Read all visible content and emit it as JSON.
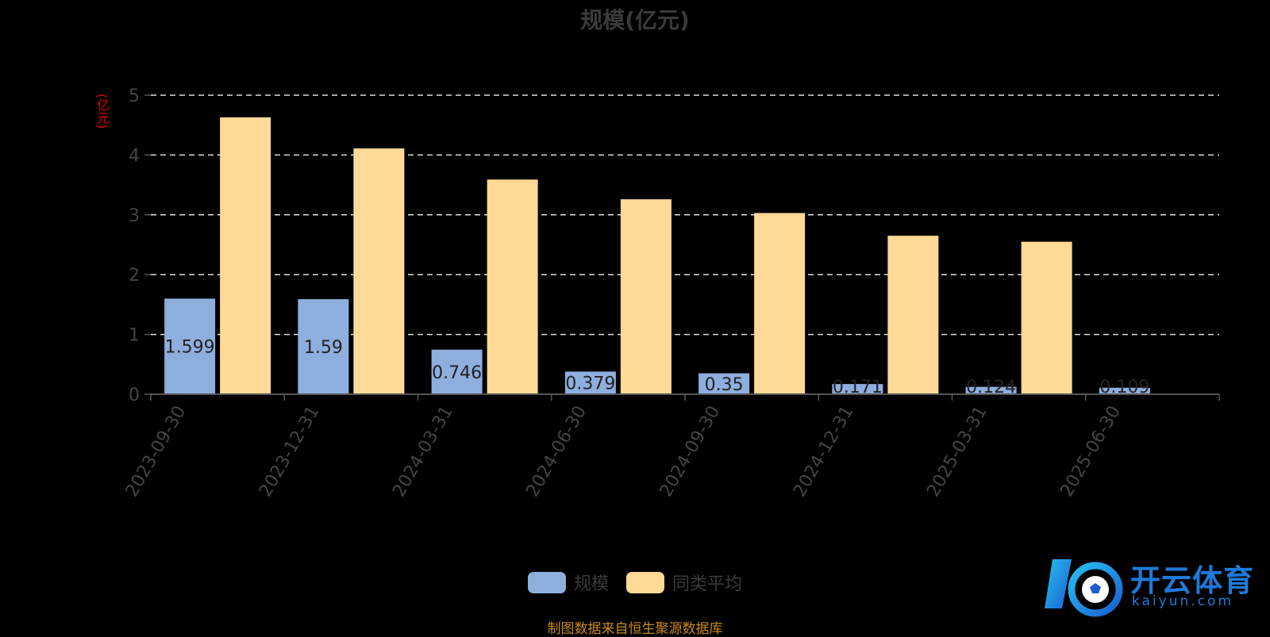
{
  "colors": {
    "series1": "#8eaede",
    "series2": "#ffd995",
    "grid": "#dddddd",
    "axis": "#555555",
    "tick": "#444444"
  },
  "legend": {
    "item1": "规模",
    "item2": "同类平均"
  },
  "footer": {
    "source": "制图数据来自恒生聚源数据库"
  },
  "watermark": {
    "brand": "开云体育",
    "domain": "kaiyun.com"
  },
  "chart_data": {
    "type": "bar",
    "title": "规模(亿元)",
    "ylabel": "(亿元)",
    "xlabel": "",
    "categories": [
      "2023-09-30",
      "2023-12-31",
      "2024-03-31",
      "2024-06-30",
      "2024-09-30",
      "2024-12-31",
      "2025-03-31",
      "2025-06-30"
    ],
    "series": [
      {
        "name": "规模",
        "values": [
          1.599,
          1.59,
          0.746,
          0.379,
          0.35,
          0.171,
          0.124,
          0.109
        ],
        "labels": [
          "1.599",
          "1.59",
          "0.746",
          "0.379",
          "0.35",
          "0.171",
          "0.124",
          "0.109"
        ]
      },
      {
        "name": "同类平均",
        "values": [
          4.63,
          4.11,
          3.59,
          3.26,
          3.03,
          2.65,
          2.55,
          null
        ]
      }
    ],
    "ylim": [
      0,
      5
    ],
    "yticks": [
      0,
      1,
      2,
      3,
      4,
      5
    ],
    "grid": true,
    "legend_position": "bottom-center"
  }
}
